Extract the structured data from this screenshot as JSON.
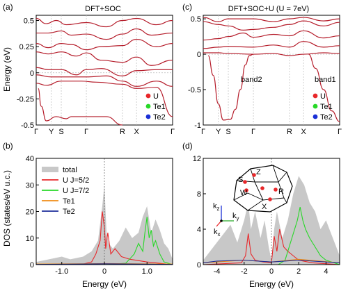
{
  "colors": {
    "U": "#e8272a",
    "Te1": "#27d827",
    "Te2": "#1a2fd6",
    "band": "#b51c2a",
    "grey": "#c8c8c8",
    "orange": "#f08c14",
    "navy": "#1c2c9a"
  },
  "chart_data": [
    {
      "panel": "(a)",
      "type": "line",
      "title": "DFT+SOC",
      "ylabel": "Energy (eV)",
      "xticks": [
        "Γ",
        "Y",
        "S",
        "Γ",
        "R",
        "X",
        "Γ"
      ],
      "xtick_pos": [
        0,
        0.15,
        0.25,
        0.5,
        0.86,
        1.0,
        1.36
      ],
      "ylim": [
        -0.5,
        0.55
      ],
      "yticks": [
        "0.5",
        "0.25",
        "0",
        "-0.25",
        "-0.5"
      ],
      "ytick_vals": [
        0.5,
        0.25,
        0,
        -0.25,
        -0.5
      ],
      "legend": [
        {
          "name": "U",
          "color": "#e8272a"
        },
        {
          "name": "Te1",
          "color": "#27d827"
        },
        {
          "name": "Te2",
          "color": "#1a2fd6"
        }
      ],
      "fermi": 0,
      "bands": [
        [
          [
            0,
            0.52
          ],
          [
            0.1,
            0.47
          ],
          [
            0.2,
            0.5
          ],
          [
            0.3,
            0.46
          ],
          [
            0.5,
            0.48
          ],
          [
            0.7,
            0.44
          ],
          [
            0.86,
            0.5
          ],
          [
            1.0,
            0.52
          ],
          [
            1.2,
            0.46
          ],
          [
            1.36,
            0.5
          ]
        ],
        [
          [
            0,
            0.38
          ],
          [
            0.12,
            0.38
          ],
          [
            0.25,
            0.4
          ],
          [
            0.35,
            0.36
          ],
          [
            0.5,
            0.37
          ],
          [
            0.7,
            0.32
          ],
          [
            0.86,
            0.37
          ],
          [
            1.0,
            0.42
          ],
          [
            1.15,
            0.36
          ],
          [
            1.36,
            0.38
          ]
        ],
        [
          [
            0,
            0.28
          ],
          [
            0.12,
            0.24
          ],
          [
            0.25,
            0.28
          ],
          [
            0.35,
            0.27
          ],
          [
            0.5,
            0.22
          ],
          [
            0.65,
            0.25
          ],
          [
            0.86,
            0.26
          ],
          [
            1.0,
            0.32
          ],
          [
            1.2,
            0.25
          ],
          [
            1.36,
            0.28
          ]
        ],
        [
          [
            0,
            0.2
          ],
          [
            0.12,
            0.18
          ],
          [
            0.25,
            0.2
          ],
          [
            0.4,
            0.16
          ],
          [
            0.5,
            0.19
          ],
          [
            0.65,
            0.12
          ],
          [
            0.86,
            0.1
          ],
          [
            1.0,
            0.15
          ],
          [
            1.15,
            0.07
          ],
          [
            1.36,
            0.12
          ]
        ],
        [
          [
            0,
            0.05
          ],
          [
            0.12,
            0.03
          ],
          [
            0.25,
            0.03
          ],
          [
            0.4,
            -0.02
          ],
          [
            0.5,
            0.03
          ],
          [
            0.65,
            0.04
          ],
          [
            0.86,
            -0.03
          ],
          [
            1.0,
            0.02
          ],
          [
            1.2,
            0.03
          ],
          [
            1.36,
            0.03
          ]
        ],
        [
          [
            0,
            -0.02
          ],
          [
            0.15,
            -0.04
          ],
          [
            0.25,
            -0.04
          ],
          [
            0.5,
            -0.04
          ],
          [
            0.7,
            -0.03
          ],
          [
            0.86,
            -0.08
          ],
          [
            1.0,
            -0.13
          ],
          [
            1.2,
            -0.08
          ],
          [
            1.36,
            -0.13
          ]
        ],
        [
          [
            0,
            -0.1
          ],
          [
            0.1,
            -0.12
          ],
          [
            0.25,
            -0.08
          ],
          [
            0.45,
            -0.08
          ],
          [
            0.6,
            -0.09
          ],
          [
            0.86,
            -0.11
          ],
          [
            1.0,
            -0.15
          ],
          [
            1.2,
            -0.14
          ],
          [
            1.36,
            -0.42
          ]
        ],
        [
          [
            0.02,
            -0.15
          ],
          [
            0.05,
            -0.32
          ],
          [
            0.1,
            -0.46
          ],
          [
            0.2,
            -0.42
          ],
          [
            0.3,
            -0.44
          ],
          [
            0.35,
            -0.42
          ],
          [
            0.5,
            -0.42
          ],
          [
            0.7,
            -0.42
          ],
          [
            0.86,
            -0.5
          ]
        ]
      ]
    },
    {
      "panel": "(c)",
      "type": "line",
      "title": "DFT+SOC+U (U = 7eV)",
      "xticks": [
        "Γ",
        "Y",
        "S",
        "Γ",
        "R",
        "X",
        "Γ"
      ],
      "xtick_pos": [
        0,
        0.15,
        0.25,
        0.5,
        0.86,
        1.0,
        1.36
      ],
      "ylim": [
        -1,
        0.55
      ],
      "yticks": [
        "0.5",
        "0",
        "-0.5",
        "-1"
      ],
      "ytick_vals": [
        0.5,
        0,
        -0.5,
        -1
      ],
      "annotations": [
        "band2",
        "band1"
      ],
      "legend": [
        {
          "name": "U",
          "color": "#e8272a"
        },
        {
          "name": "Te1",
          "color": "#27d827"
        },
        {
          "name": "Te2",
          "color": "#1a2fd6"
        }
      ],
      "fermi": 0,
      "bands": [
        [
          [
            0,
            0.52
          ],
          [
            0.15,
            0.46
          ],
          [
            0.25,
            0.5
          ],
          [
            0.5,
            0.5
          ],
          [
            0.7,
            0.46
          ],
          [
            0.86,
            0.5
          ],
          [
            1.0,
            0.52
          ],
          [
            1.2,
            0.47
          ],
          [
            1.36,
            0.5
          ]
        ],
        [
          [
            0,
            0.46
          ],
          [
            0.15,
            0.42
          ],
          [
            0.25,
            0.4
          ],
          [
            0.4,
            0.34
          ],
          [
            0.5,
            0.35
          ],
          [
            0.7,
            0.38
          ],
          [
            0.86,
            0.42
          ],
          [
            1.0,
            0.47
          ],
          [
            1.2,
            0.4
          ],
          [
            1.36,
            0.45
          ]
        ],
        [
          [
            0,
            0.2
          ],
          [
            0.15,
            0.22
          ],
          [
            0.25,
            0.25
          ],
          [
            0.4,
            0.3
          ],
          [
            0.5,
            0.24
          ],
          [
            0.7,
            0.28
          ],
          [
            0.86,
            0.26
          ],
          [
            1.0,
            0.33
          ],
          [
            1.2,
            0.23
          ],
          [
            1.36,
            0.26
          ]
        ],
        [
          [
            0,
            0.08
          ],
          [
            0.15,
            0.1
          ],
          [
            0.25,
            0.11
          ],
          [
            0.5,
            0.1
          ],
          [
            0.7,
            0.13
          ],
          [
            0.86,
            0.1
          ],
          [
            1.0,
            0.18
          ],
          [
            1.2,
            0.1
          ],
          [
            1.36,
            0.12
          ]
        ],
        [
          [
            0,
            0.02
          ],
          [
            0.15,
            0.02
          ],
          [
            0.25,
            0.01
          ],
          [
            0.5,
            0.0
          ],
          [
            0.7,
            0.01
          ],
          [
            0.86,
            -0.02
          ],
          [
            1.0,
            0.0
          ],
          [
            1.2,
            0.02
          ],
          [
            1.36,
            0.01
          ]
        ],
        [
          [
            0.05,
            -0.02
          ],
          [
            0.1,
            -0.3
          ],
          [
            0.15,
            -0.7
          ],
          [
            0.2,
            -0.93
          ],
          [
            0.27,
            -0.92
          ],
          [
            0.32,
            -0.78
          ],
          [
            0.37,
            -0.5
          ],
          [
            0.42,
            -0.15
          ],
          [
            0.46,
            -0.02
          ],
          [
            0.5,
            0.0
          ]
        ],
        [
          [
            1.05,
            0.0
          ],
          [
            1.12,
            -0.2
          ],
          [
            1.2,
            -0.5
          ],
          [
            1.28,
            -0.8
          ],
          [
            1.36,
            -0.95
          ]
        ]
      ]
    },
    {
      "panel": "(b)",
      "type": "area",
      "ylabel": "DOS (states/eV u.c.)",
      "xlabel": "Energy (eV)",
      "xlim": [
        -1.6,
        1.6
      ],
      "xticks": [
        "-1.0",
        "0",
        "1.0"
      ],
      "xtick_vals": [
        -1.0,
        0,
        1.0
      ],
      "ylim": [
        0,
        40
      ],
      "yticks": [
        "0",
        "10",
        "20",
        "30",
        "40"
      ],
      "ytick_vals": [
        0,
        10,
        20,
        30,
        40
      ],
      "series": [
        {
          "name": "total",
          "color": "#c8c8c8",
          "x": [
            -1.6,
            -1.3,
            -1.0,
            -0.8,
            -0.5,
            -0.3,
            -0.15,
            -0.05,
            0.0,
            0.05,
            0.1,
            0.2,
            0.35,
            0.5,
            0.65,
            0.8,
            0.9,
            1.0,
            1.1,
            1.2,
            1.3,
            1.4,
            1.5,
            1.6
          ],
          "values": [
            1,
            2,
            3,
            2,
            3,
            5,
            9,
            22,
            30,
            12,
            8,
            6,
            9,
            14,
            10,
            12,
            18,
            22,
            12,
            17,
            13,
            8,
            6,
            2
          ]
        },
        {
          "name": "U J=5/2",
          "color": "#e8272a",
          "x": [
            -1.6,
            -0.5,
            -0.3,
            -0.2,
            -0.1,
            -0.05,
            0.0,
            0.03,
            0.08,
            0.15,
            0.25,
            0.4,
            0.6,
            1.0,
            1.6
          ],
          "values": [
            0,
            0.2,
            1,
            4,
            9,
            20,
            14,
            6,
            12,
            4,
            6,
            3,
            2,
            1,
            0
          ]
        },
        {
          "name": "U J=7/2",
          "color": "#27d827",
          "x": [
            -1.6,
            0.0,
            0.5,
            0.7,
            0.8,
            0.9,
            0.95,
            1.0,
            1.05,
            1.1,
            1.15,
            1.2,
            1.3,
            1.4,
            1.6
          ],
          "values": [
            0,
            0,
            0.5,
            4,
            8,
            5,
            12,
            18,
            10,
            13,
            7,
            9,
            4,
            1,
            0
          ]
        },
        {
          "name": "Te1",
          "color": "#f08c14",
          "x": [
            -1.6,
            0,
            1.6
          ],
          "values": [
            0.2,
            0.4,
            0.2
          ]
        },
        {
          "name": "Te2",
          "color": "#1c2c9a",
          "x": [
            -1.6,
            0,
            1.6
          ],
          "values": [
            0.1,
            0.3,
            0.1
          ]
        }
      ]
    },
    {
      "panel": "(d)",
      "type": "area",
      "xlabel": "Energy (eV)",
      "xlim": [
        -5,
        5
      ],
      "xticks": [
        "-4",
        "-2",
        "0",
        "2",
        "4"
      ],
      "xtick_vals": [
        -4,
        -2,
        0,
        2,
        4
      ],
      "ylim": [
        0,
        12
      ],
      "yticks": [
        "0",
        "4",
        "8",
        "12"
      ],
      "ytick_vals": [
        0,
        4,
        8,
        12
      ],
      "series": [
        {
          "name": "total",
          "color": "#c8c8c8",
          "x": [
            -5,
            -4.5,
            -4,
            -3.5,
            -3,
            -2.5,
            -2,
            -1.7,
            -1.5,
            -1.2,
            -0.8,
            -0.5,
            -0.2,
            0,
            0.2,
            0.4,
            0.8,
            1.2,
            1.6,
            2.0,
            2.4,
            2.8,
            3.2,
            3.6,
            4.0,
            4.5,
            5
          ],
          "values": [
            0.5,
            1.5,
            2.5,
            3.5,
            4.5,
            2.5,
            5,
            7,
            4,
            6,
            3,
            5,
            2,
            0.5,
            4,
            6,
            3,
            5,
            8,
            10,
            9,
            7,
            6,
            4,
            5,
            3,
            1
          ]
        },
        {
          "name": "U J=5/2",
          "color": "#e8272a",
          "x": [
            -5,
            -2.2,
            -1.9,
            -1.7,
            -1.5,
            -1.2,
            -0.6,
            0,
            0.2,
            0.4,
            0.6,
            0.9,
            1.2,
            1.6,
            2.0,
            3,
            5
          ],
          "values": [
            0,
            0.2,
            1,
            3.5,
            1.2,
            0.5,
            0.3,
            0.2,
            3.2,
            1.5,
            4,
            2,
            1.5,
            1,
            0.5,
            0.2,
            0
          ]
        },
        {
          "name": "U J=7/2",
          "color": "#27d827",
          "x": [
            -5,
            0.5,
            1.0,
            1.3,
            1.6,
            1.9,
            2.1,
            2.3,
            2.5,
            2.8,
            3.2,
            3.6,
            4,
            5
          ],
          "values": [
            0,
            0,
            0.5,
            2,
            3.5,
            5,
            6.5,
            5,
            4,
            3,
            2,
            1,
            0.5,
            0
          ]
        },
        {
          "name": "Te1",
          "color": "#f08c14",
          "x": [
            -5,
            -2,
            0,
            2,
            5
          ],
          "values": [
            0.2,
            0.5,
            0.3,
            0.6,
            0.2
          ]
        },
        {
          "name": "Te2",
          "color": "#1c2c9a",
          "x": [
            -5,
            -4,
            -2,
            0,
            2,
            5
          ],
          "values": [
            0.2,
            0.4,
            0.5,
            0.3,
            0.5,
            0.2
          ]
        }
      ],
      "inset": {
        "points": [
          "Z",
          "S",
          "W",
          "R",
          "X"
        ],
        "axes": [
          "k",
          "k",
          "k"
        ],
        "axis_subs": [
          "z",
          "y",
          "x"
        ]
      }
    }
  ]
}
